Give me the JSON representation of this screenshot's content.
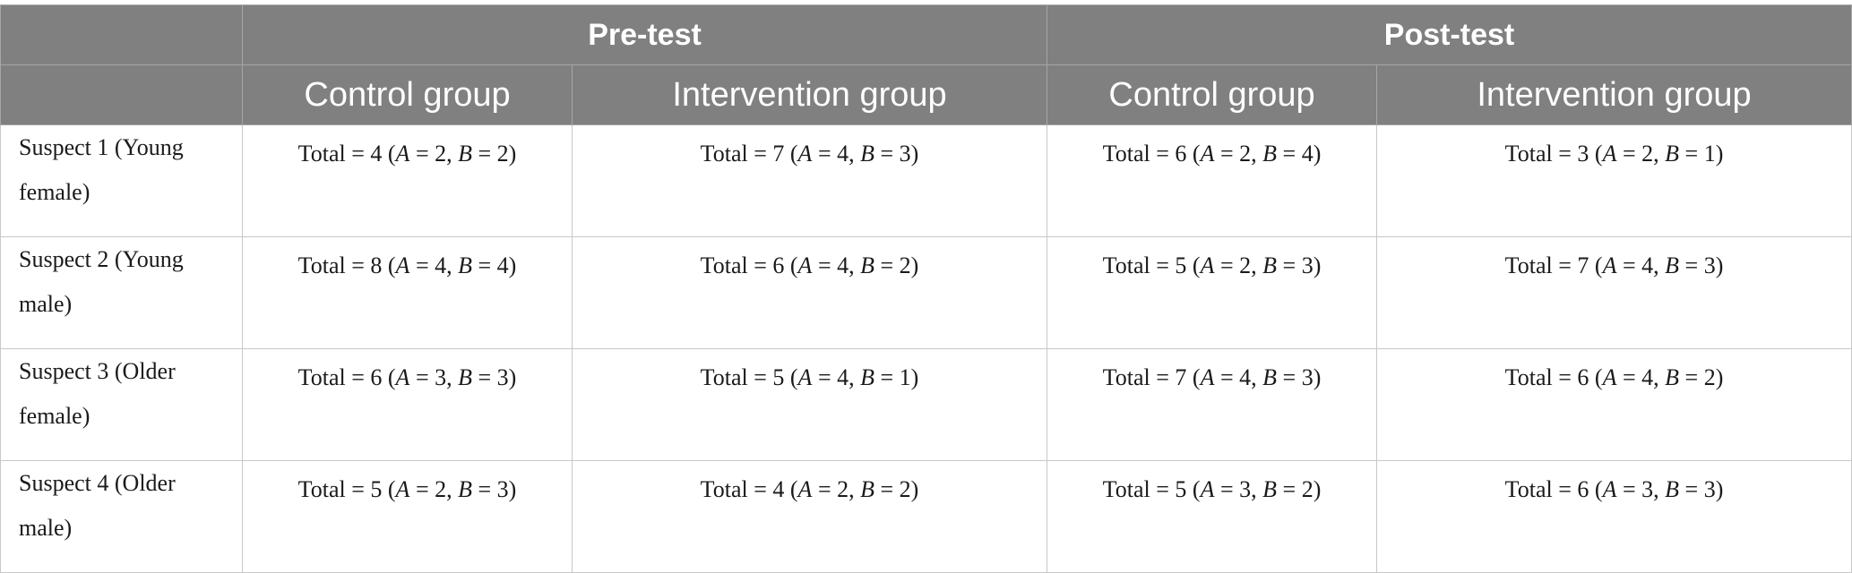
{
  "header": {
    "corner": "",
    "groups": [
      "Pre-test",
      "Post-test"
    ],
    "subgroups": [
      "Control group",
      "Intervention group",
      "Control group",
      "Intervention group"
    ]
  },
  "rows": [
    {
      "label": "Suspect 1 (Young female)",
      "cells": [
        {
          "total": "4",
          "a": "2",
          "b": "2"
        },
        {
          "total": "7",
          "a": "4",
          "b": "3"
        },
        {
          "total": "6",
          "a": "2",
          "b": "4"
        },
        {
          "total": "3",
          "a": "2",
          "b": "1"
        }
      ]
    },
    {
      "label": "Suspect 2 (Young male)",
      "cells": [
        {
          "total": "8",
          "a": "4",
          "b": "4"
        },
        {
          "total": "6",
          "a": "4",
          "b": "2"
        },
        {
          "total": "5",
          "a": "2",
          "b": "3"
        },
        {
          "total": "7",
          "a": "4",
          "b": "3"
        }
      ]
    },
    {
      "label": "Suspect 3 (Older female)",
      "cells": [
        {
          "total": "6",
          "a": "3",
          "b": "3"
        },
        {
          "total": "5",
          "a": "4",
          "b": "1"
        },
        {
          "total": "7",
          "a": "4",
          "b": "3"
        },
        {
          "total": "6",
          "a": "4",
          "b": "2"
        }
      ]
    },
    {
      "label": "Suspect 4 (Older male)",
      "cells": [
        {
          "total": "5",
          "a": "2",
          "b": "3"
        },
        {
          "total": "4",
          "a": "2",
          "b": "2"
        },
        {
          "total": "5",
          "a": "3",
          "b": "2"
        },
        {
          "total": "6",
          "a": "3",
          "b": "3"
        }
      ]
    }
  ],
  "cell_text": {
    "total_prefix": "Total = ",
    "a_label": "A",
    "b_label": "B"
  },
  "colors": {
    "header_bg": "#808080",
    "header_text": "#ffffff",
    "grid": "#c8c8c8"
  }
}
